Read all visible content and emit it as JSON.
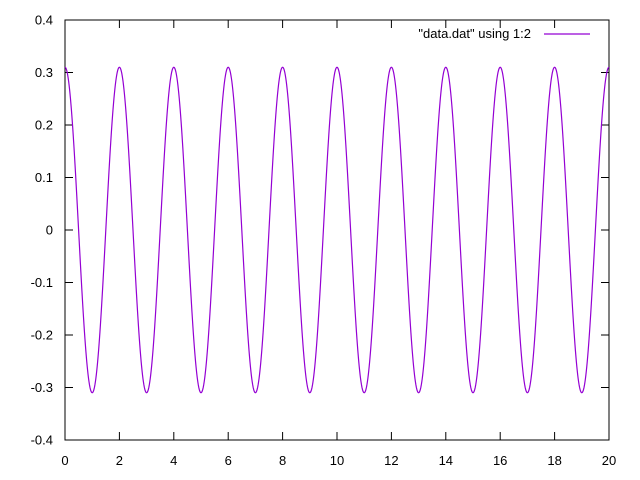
{
  "chart_data": {
    "type": "line",
    "title": "",
    "xlabel": "",
    "ylabel": "",
    "xlim": [
      0,
      20
    ],
    "ylim": [
      -0.4,
      0.4
    ],
    "x_ticks": [
      0,
      2,
      4,
      6,
      8,
      10,
      12,
      14,
      16,
      18,
      20
    ],
    "x_tick_labels": [
      "0",
      "2",
      "4",
      "6",
      "8",
      "10",
      "12",
      "14",
      "16",
      "18",
      "20"
    ],
    "y_ticks": [
      0.4,
      0.3,
      0.2,
      0.1,
      0,
      -0.1,
      -0.2,
      -0.3,
      -0.4
    ],
    "y_tick_labels": [
      "0.4",
      "0.3",
      "0.2",
      "0.1",
      "0",
      "-0.1",
      "-0.2",
      "-0.3",
      "-0.4"
    ],
    "grid": false,
    "legend": {
      "placement": "top-right"
    },
    "series": [
      {
        "name": "\"data.dat\" using 1:2",
        "color": "#9400d3",
        "amplitude": 0.31,
        "period": 2,
        "x": [
          0,
          0.5,
          1,
          1.5,
          2,
          2.5,
          3,
          3.5,
          4,
          4.5,
          5,
          5.5,
          6,
          6.5,
          7,
          7.5,
          8,
          8.5,
          9,
          9.5,
          10,
          10.5,
          11,
          11.5,
          12,
          12.5,
          13,
          13.5,
          14,
          14.5,
          15,
          15.5,
          16,
          16.5,
          17,
          17.5,
          18,
          18.5,
          19,
          19.5,
          20
        ],
        "y": [
          0.31,
          0,
          -0.31,
          0,
          0.31,
          0,
          -0.31,
          0,
          0.31,
          0,
          -0.31,
          0,
          0.31,
          0,
          -0.31,
          0,
          0.31,
          0,
          -0.31,
          0,
          0.31,
          0,
          -0.31,
          0,
          0.31,
          0,
          -0.31,
          0,
          0.31,
          0,
          -0.31,
          0,
          0.31,
          0,
          -0.31,
          0,
          0.31,
          0,
          -0.31,
          0,
          0.31
        ]
      }
    ]
  }
}
